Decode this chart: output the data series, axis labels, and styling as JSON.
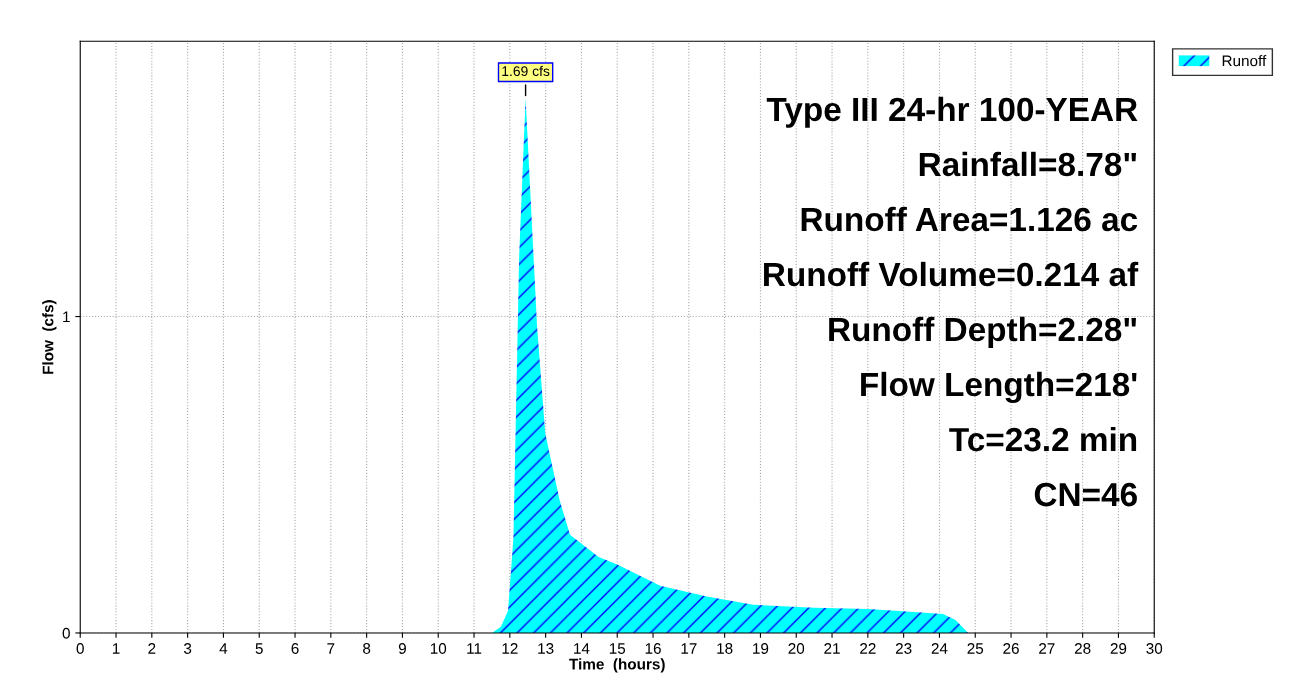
{
  "chart_data": {
    "type": "area",
    "xlabel": "Time  (hours)",
    "ylabel": "Flow  (cfs)",
    "x": [
      0,
      11.5,
      11.75,
      11.95,
      12.1,
      12.26,
      12.44,
      12.76,
      12.99,
      13.39,
      13.68,
      14.48,
      15.0,
      16.2,
      17.5,
      18.8,
      20.5,
      22.0,
      23.5,
      24.1,
      24.45,
      24.8,
      30
    ],
    "series": [
      {
        "name": "Runoff",
        "color": "#00ffff",
        "values": [
          0,
          0,
          0.02,
          0.07,
          0.3,
          1.19,
          1.69,
          0.97,
          0.63,
          0.42,
          0.31,
          0.24,
          0.216,
          0.149,
          0.115,
          0.089,
          0.08,
          0.076,
          0.065,
          0.06,
          0.041,
          0,
          0
        ]
      }
    ],
    "xlim": [
      0,
      30
    ],
    "xticks": [
      0,
      1,
      2,
      3,
      4,
      5,
      6,
      7,
      8,
      9,
      10,
      11,
      12,
      13,
      14,
      15,
      16,
      17,
      18,
      19,
      20,
      21,
      22,
      23,
      24,
      25,
      26,
      27,
      28,
      29,
      30
    ],
    "ylim": [
      0,
      1.87
    ],
    "yticks": [
      0,
      1
    ],
    "grid": true,
    "legend": "top right",
    "annotations": [
      {
        "text": "1.69 cfs",
        "x": 12.44,
        "y": 1.69
      },
      "Type III 24-hr 100-YEAR",
      "Rainfall=8.78\"",
      "Runoff Area=1.126 ac",
      "Runoff Volume=0.214 af",
      "Runoff Depth=2.28\"",
      "Flow Length=218'",
      "Tc=23.2 min",
      "CN=46"
    ]
  }
}
